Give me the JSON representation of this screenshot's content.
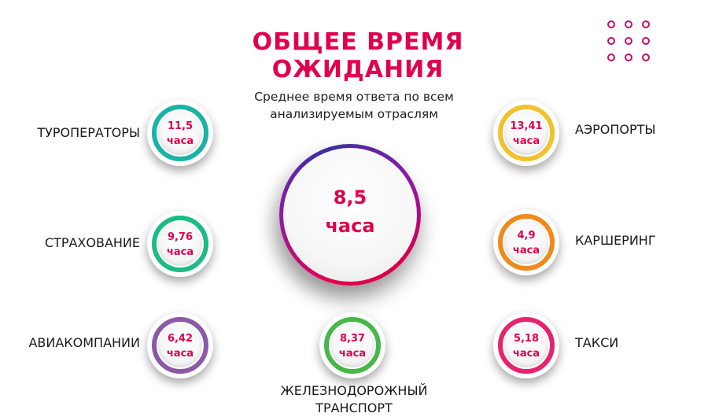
{
  "title": "ОБЩЕЕ ВРЕМЯ ОЖИДАНИЯ",
  "subtitle": {
    "line1": "Среднее время ответа по всем",
    "line2": "анализируемым отраслям"
  },
  "average": {
    "value": "8,5",
    "unit": "часа"
  },
  "industries": {
    "touroperators": {
      "label": "ТУРОПЕРАТОРЫ",
      "value": "11,5",
      "unit": "часа",
      "color": "#1ab3a6"
    },
    "insurance": {
      "label": "СТРАХОВАНИЕ",
      "value": "9,76",
      "unit": "часа",
      "color": "#1dbb86"
    },
    "airlines": {
      "label": "АВИАКОМПАНИИ",
      "value": "6,42",
      "unit": "часа",
      "color": "#8a5aa8"
    },
    "railway": {
      "label_line1": "ЖЕЛЕЗНОДОРОЖНЫЙ",
      "label_line2": "ТРАНСПОРТ",
      "value": "8,37",
      "unit": "часа",
      "color": "#49b64a"
    },
    "airports": {
      "label": "АЭРОПОРТЫ",
      "value": "13,41",
      "unit": "часа",
      "color": "#f2c12e"
    },
    "carsharing": {
      "label": "КАРШЕРИНГ",
      "value": "4,9",
      "unit": "часа",
      "color": "#f08a1c"
    },
    "taxi": {
      "label": "ТАКСИ",
      "value": "5,18",
      "unit": "часа",
      "color": "#e6246e"
    }
  },
  "colors": {
    "accent": "#e0004d",
    "dots": "#c30c6b"
  },
  "icons": [
    "decorative-dots-grid"
  ]
}
